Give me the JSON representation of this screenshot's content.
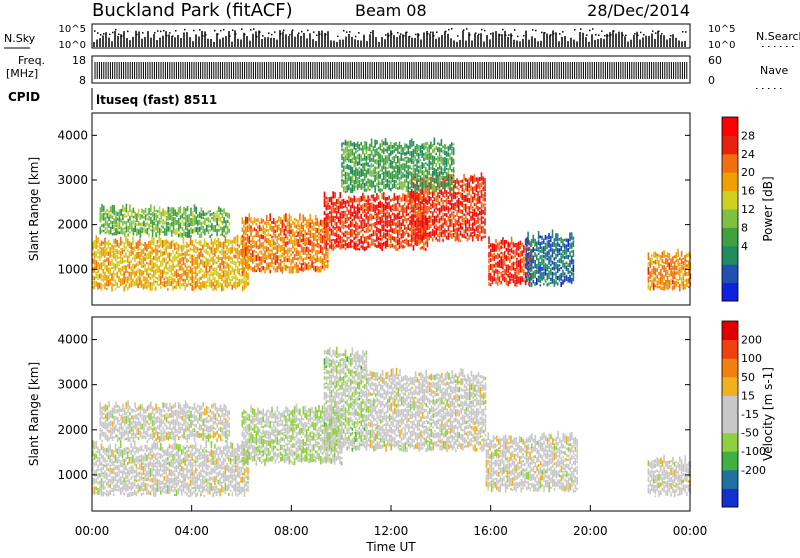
{
  "header": {
    "station": "Buckland Park (fitACF)",
    "beam": "Beam 08",
    "date": "28/Dec/2014"
  },
  "top_strip": {
    "left_label": "N.Sky",
    "left_ticks": [
      "10^5",
      "10^0"
    ],
    "right_label": "N.Search",
    "right_ticks": [
      "10^5",
      "10^0"
    ],
    "right_legend_style": "dotted"
  },
  "freq_strip": {
    "left_label": "Freq.",
    "left_unit": "[MHz]",
    "left_ticks": [
      "18",
      "8"
    ],
    "right_label": "Nave",
    "right_ticks": [
      "60",
      "0"
    ],
    "right_legend_style": "dotted"
  },
  "cpid": {
    "label": "CPID",
    "program": "ltuseq (fast) 8511"
  },
  "chart_data": [
    {
      "type": "heatmap",
      "name": "power",
      "ylabel": "Slant Range [km]",
      "yticks": [
        "1000",
        "2000",
        "3000",
        "4000"
      ],
      "ylim": [
        200,
        4500
      ],
      "xlim": [
        0,
        24
      ],
      "colorbar": {
        "label": "Power [dB]",
        "ticks": [
          "28",
          "24",
          "20",
          "16",
          "12",
          "8",
          "4"
        ],
        "range": [
          0,
          32
        ],
        "colors": [
          "#1020e0",
          "#2050b0",
          "#208a60",
          "#40a040",
          "#80c040",
          "#d0d020",
          "#f0a000",
          "#f07010",
          "#e82010",
          "#ff0000"
        ]
      },
      "regions": [
        {
          "t0": 0,
          "t1": 6.3,
          "r0": 500,
          "r1": 1600,
          "value": 20
        },
        {
          "t0": 0.3,
          "t1": 5.5,
          "r0": 1700,
          "r1": 2300,
          "value": 13
        },
        {
          "t0": 6,
          "t1": 9.5,
          "r0": 900,
          "r1": 2100,
          "value": 23
        },
        {
          "t0": 9.3,
          "t1": 13.5,
          "r0": 1400,
          "r1": 2600,
          "value": 27
        },
        {
          "t0": 12.8,
          "t1": 15.8,
          "r0": 1600,
          "r1": 3000,
          "value": 27
        },
        {
          "t0": 10,
          "t1": 14.5,
          "r0": 2700,
          "r1": 3800,
          "value": 11
        },
        {
          "t0": 15.9,
          "t1": 17.6,
          "r0": 600,
          "r1": 1600,
          "value": 27
        },
        {
          "t0": 17.4,
          "t1": 19.3,
          "r0": 600,
          "r1": 1700,
          "value": 6
        },
        {
          "t0": 22.3,
          "t1": 24,
          "r0": 500,
          "r1": 1300,
          "value": 22
        }
      ]
    },
    {
      "type": "heatmap",
      "name": "velocity",
      "ylabel": "Slant Range [km]",
      "yticks": [
        "1000",
        "2000",
        "3000",
        "4000"
      ],
      "ylim": [
        200,
        4500
      ],
      "xlim": [
        0,
        24
      ],
      "xticks": [
        "00:00",
        "04:00",
        "08:00",
        "12:00",
        "16:00",
        "20:00",
        "00:00"
      ],
      "xlabel": "Time UT",
      "colorbar": {
        "label": "Velocity [m s-1]",
        "ticks": [
          "200",
          "100",
          "50",
          "15",
          "-15",
          "-50",
          "-100",
          "-200"
        ],
        "range": [
          -250,
          250
        ],
        "colors": [
          "#1030d0",
          "#2070a0",
          "#40b040",
          "#90d040",
          "#c8c8c8",
          "#c8c8c8",
          "#f0b020",
          "#f08010",
          "#f04010",
          "#e00000"
        ]
      },
      "regions": [
        {
          "t0": 0,
          "t1": 6.3,
          "r0": 500,
          "r1": 1600,
          "value": 0
        },
        {
          "t0": 0.3,
          "t1": 5.5,
          "r0": 1700,
          "r1": 2500,
          "value": 0
        },
        {
          "t0": 6,
          "t1": 10,
          "r0": 1200,
          "r1": 2400,
          "value": -35
        },
        {
          "t0": 9.3,
          "t1": 11,
          "r0": 1500,
          "r1": 3700,
          "value": -40
        },
        {
          "t0": 11,
          "t1": 15.8,
          "r0": 1500,
          "r1": 3200,
          "value": 0
        },
        {
          "t0": 15.8,
          "t1": 19.5,
          "r0": 600,
          "r1": 1800,
          "value": 0
        },
        {
          "t0": 22.3,
          "t1": 24,
          "r0": 500,
          "r1": 1300,
          "value": 0
        }
      ]
    }
  ]
}
